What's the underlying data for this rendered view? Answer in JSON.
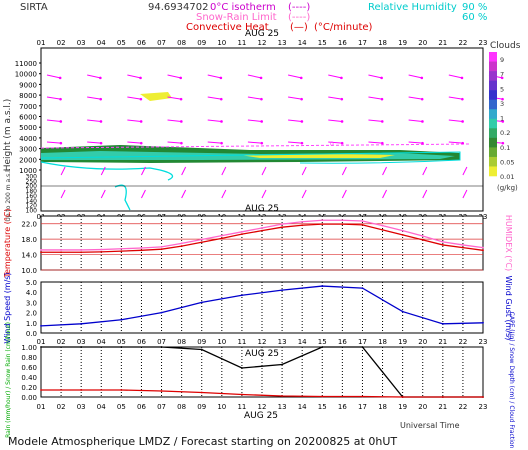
{
  "header": {
    "site": "SIRTA",
    "lat_lon": "94.6934702",
    "legend_isotherm": "0°C isotherm",
    "legend_snow_rain": "Snow-Rain Limit",
    "legend_convective": "Convective Heat",
    "legend_convective_unit": "(°C/minute)",
    "legend_rh": "Relative Humidity",
    "rh_90": "90 %",
    "rh_60": "60 %",
    "dash": "(----)",
    "bracket": "(—)",
    "clouds_label": "Clouds"
  },
  "hours": [
    "01",
    "02",
    "03",
    "04",
    "05",
    "06",
    "07",
    "08",
    "09",
    "10",
    "11",
    "12",
    "13",
    "14",
    "15",
    "16",
    "17",
    "18",
    "19",
    "20",
    "21",
    "22",
    "23"
  ],
  "date_label": "AUG 25",
  "cloud_panel": {
    "ylabel": "Height (m a.s.l.)",
    "yticks": [
      "11000",
      "10000",
      "9000",
      "8000",
      "7000",
      "6000",
      "5000",
      "4000",
      "3000",
      "2000",
      "1000",
      "300",
      "250",
      "200",
      "180",
      "160",
      "140",
      "120",
      "100"
    ],
    "ylabel_low": "Up to 200 m a.s.l.",
    "colorbar": {
      "ticks": [
        "9",
        "7",
        "5",
        "3",
        "1",
        "0.2",
        "0.1",
        "0.05",
        "0.01"
      ],
      "unit": "(g/kg)",
      "colors": [
        "#ff33ff",
        "#cc33cc",
        "#9933cc",
        "#6633cc",
        "#3333cc",
        "#3366cc",
        "#33aacc",
        "#33ccaa",
        "#33aa66",
        "#338833",
        "#66aa33",
        "#aacc33",
        "#eeee33"
      ]
    }
  },
  "chart_data": [
    {
      "type": "line",
      "title": "",
      "ylabel": "Temperature (°C)",
      "ylabel_right": "HUMIDEX (°C)",
      "ylim": [
        10,
        24
      ],
      "yticks": [
        "22.0",
        "18.0",
        "14.0",
        "10.0"
      ],
      "x": [
        "01",
        "02",
        "03",
        "04",
        "05",
        "06",
        "07",
        "08",
        "09",
        "10",
        "11",
        "12",
        "13",
        "14",
        "15",
        "16",
        "17",
        "18",
        "19",
        "20",
        "21",
        "22",
        "23"
      ],
      "series": [
        {
          "name": "Temperature",
          "color": "#dd0000",
          "values": [
            14.6,
            14.6,
            14.6,
            14.7,
            14.9,
            15.1,
            15.4,
            16.2,
            17.2,
            18.2,
            19.3,
            20.2,
            21.1,
            21.6,
            21.9,
            21.9,
            21.7,
            20.4,
            19.1,
            17.8,
            16.5,
            15.8,
            15.1
          ]
        },
        {
          "name": "HUMIDEX",
          "color": "#ff66cc",
          "values": [
            15.2,
            15.2,
            15.2,
            15.3,
            15.5,
            15.7,
            16.0,
            16.9,
            17.9,
            18.9,
            19.9,
            20.9,
            21.9,
            22.5,
            22.9,
            22.9,
            22.7,
            21.5,
            20.2,
            18.8,
            17.3,
            16.5,
            15.8
          ]
        }
      ]
    },
    {
      "type": "line",
      "ylabel": "Wind Speed (m/s)",
      "ylabel_right": "Wind Gust (m/s)",
      "ylim": [
        0,
        5
      ],
      "yticks": [
        "5.0",
        "4.0",
        "3.0",
        "2.0",
        "1.0",
        "0.0"
      ],
      "x": [
        "01",
        "03",
        "05",
        "07",
        "09",
        "11",
        "13",
        "15",
        "17",
        "19",
        "21",
        "23"
      ],
      "series": [
        {
          "name": "Wind Speed",
          "color": "#0000cc",
          "values": [
            0.7,
            0.9,
            1.3,
            2.0,
            3.0,
            3.7,
            4.2,
            4.6,
            4.4,
            2.1,
            0.9,
            1.0
          ]
        }
      ]
    },
    {
      "type": "line",
      "ylabel": "Rain (mm/hour) / Snow Rain (cm/hour)",
      "ylabel_right": "CAPE (J/g) / Snow Depth (cm) / Cloud Fraction",
      "ylim": [
        0,
        1
      ],
      "yticks": [
        "1.00",
        "0.80",
        "0.60",
        "0.40",
        "0.20",
        "0.00"
      ],
      "x": [
        "01",
        "03",
        "05",
        "07",
        "09",
        "11",
        "13",
        "15",
        "17",
        "19",
        "21",
        "23"
      ],
      "series": [
        {
          "name": "Cloud Fraction",
          "color": "#000000",
          "values": [
            1.0,
            1.0,
            1.0,
            1.0,
            0.95,
            0.58,
            0.65,
            1.0,
            1.0,
            0.0,
            0.0,
            0.0
          ]
        },
        {
          "name": "CAPE",
          "color": "#dd0000",
          "values": [
            0.14,
            0.14,
            0.14,
            0.12,
            0.09,
            0.05,
            0.02,
            0.01,
            0.01,
            0.0,
            0.0,
            0.0
          ]
        }
      ]
    }
  ],
  "footer": {
    "universal_time": "Universal Time",
    "forecast": "Modele Atmospherique LMDZ / Forecast starting on 20200825 at 0hUT"
  }
}
